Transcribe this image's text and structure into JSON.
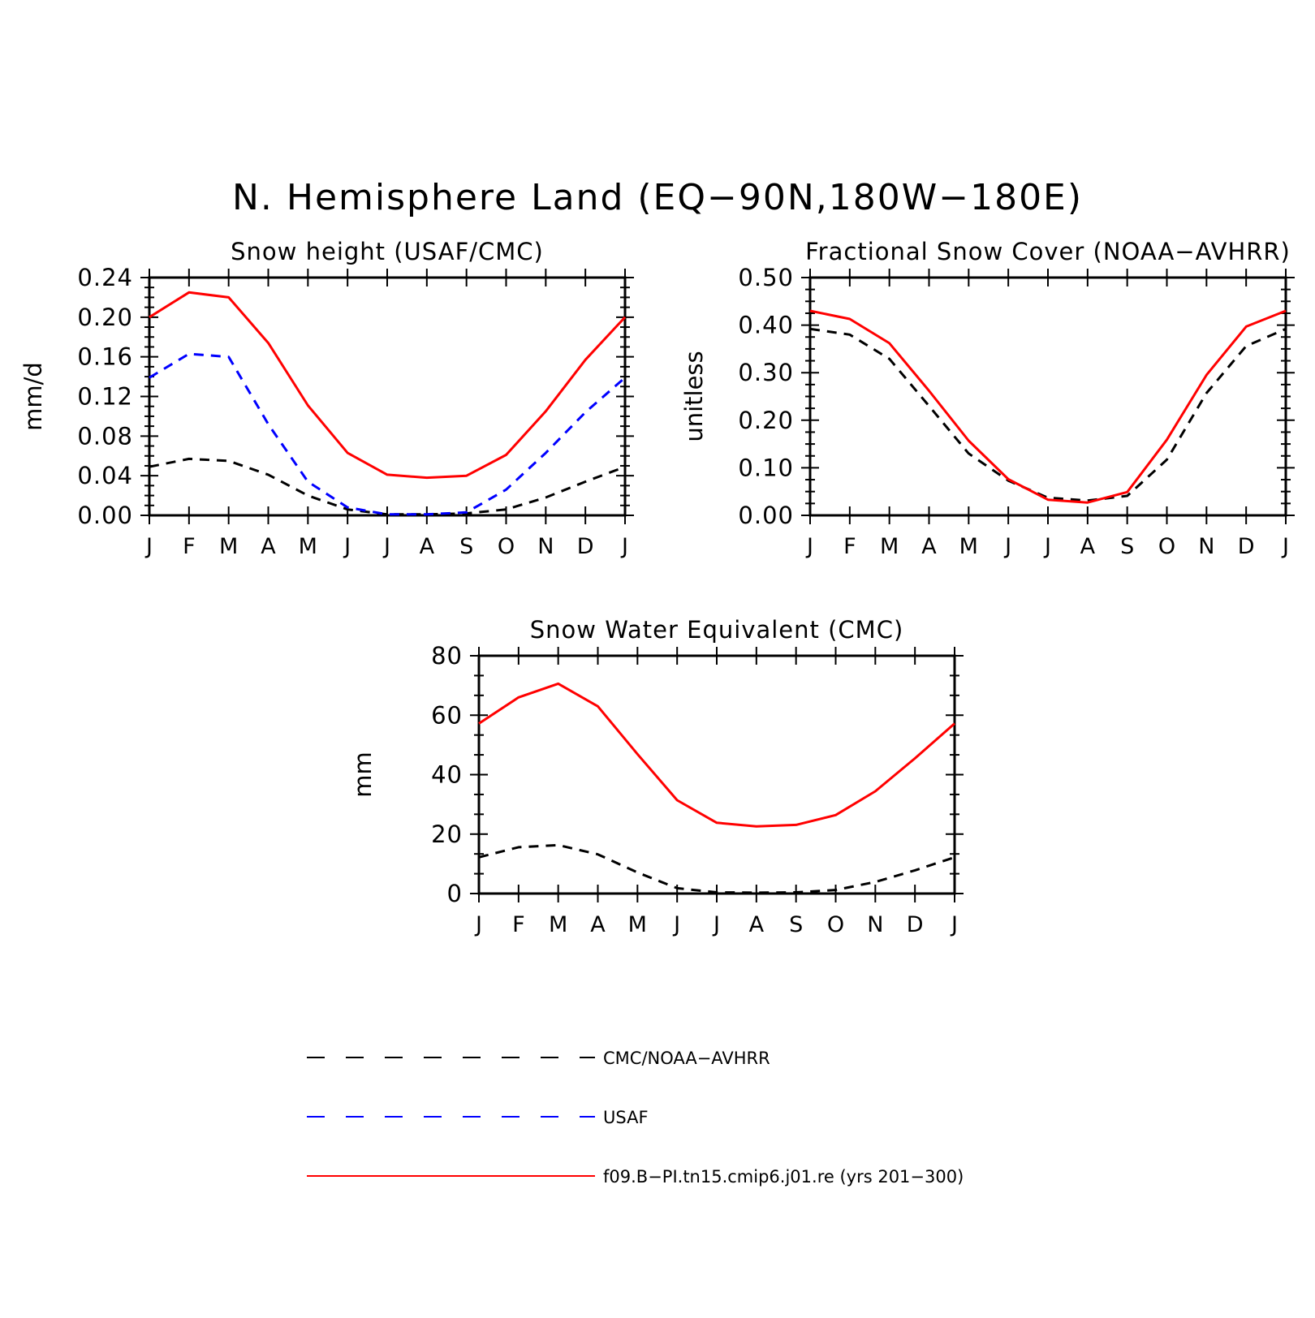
{
  "figure": {
    "title": "N. Hemisphere Land (EQ−90N,180W−180E)"
  },
  "colors": {
    "obs": "#000000",
    "usaf": "#0000ff",
    "model": "#ff0000",
    "axis": "#000000"
  },
  "legend": {
    "entries": [
      {
        "label": "CMC/NOAA−AVHRR",
        "color": "#000000",
        "dash": "dashed"
      },
      {
        "label": "USAF",
        "color": "#0000ff",
        "dash": "dashed"
      },
      {
        "label": "f09.B−PI.tn15.cmip6.j01.re (yrs 201−300)",
        "color": "#ff0000",
        "dash": "solid"
      }
    ]
  },
  "chart_data": [
    {
      "type": "line",
      "title": "Snow height (USAF/CMC)",
      "xlabel": "",
      "ylabel": "mm/d",
      "categories": [
        "J",
        "F",
        "M",
        "A",
        "M",
        "J",
        "J",
        "A",
        "S",
        "O",
        "N",
        "D",
        "J"
      ],
      "ylim": [
        0,
        0.24
      ],
      "yticks": [
        "0.00",
        "0.04",
        "0.08",
        "0.12",
        "0.16",
        "0.20",
        "0.24"
      ],
      "grid": false,
      "series": [
        {
          "name": "CMC/NOAA−AVHRR",
          "color": "#000000",
          "dash": "dashed",
          "values": [
            0.049,
            0.057,
            0.055,
            0.041,
            0.02,
            0.006,
            0.001,
            0.001,
            0.002,
            0.006,
            0.018,
            0.034,
            0.049
          ]
        },
        {
          "name": "USAF",
          "color": "#0000ff",
          "dash": "dashed",
          "values": [
            0.139,
            0.163,
            0.16,
            0.092,
            0.034,
            0.008,
            0.001,
            0.001,
            0.003,
            0.026,
            0.063,
            0.104,
            0.139
          ]
        },
        {
          "name": "f09.B−PI.tn15.cmip6.j01.re (yrs 201−300)",
          "color": "#ff0000",
          "dash": "solid",
          "values": [
            0.2,
            0.225,
            0.22,
            0.174,
            0.111,
            0.063,
            0.041,
            0.038,
            0.04,
            0.061,
            0.105,
            0.157,
            0.2
          ]
        }
      ]
    },
    {
      "type": "line",
      "title": "Fractional Snow Cover (NOAA−AVHRR)",
      "xlabel": "",
      "ylabel": "unitless",
      "categories": [
        "J",
        "F",
        "M",
        "A",
        "M",
        "J",
        "J",
        "A",
        "S",
        "O",
        "N",
        "D",
        "J"
      ],
      "ylim": [
        0,
        0.5
      ],
      "yticks": [
        "0.00",
        "0.10",
        "0.20",
        "0.30",
        "0.40",
        "0.50"
      ],
      "grid": false,
      "series": [
        {
          "name": "CMC/NOAA−AVHRR",
          "color": "#000000",
          "dash": "dashed",
          "values": [
            0.392,
            0.38,
            0.329,
            0.23,
            0.13,
            0.073,
            0.037,
            0.031,
            0.041,
            0.117,
            0.257,
            0.356,
            0.392
          ]
        },
        {
          "name": "f09.B−PI.tn15.cmip6.j01.re (yrs 201−300)",
          "color": "#ff0000",
          "dash": "solid",
          "values": [
            0.43,
            0.413,
            0.362,
            0.262,
            0.157,
            0.076,
            0.033,
            0.027,
            0.049,
            0.159,
            0.295,
            0.397,
            0.43
          ]
        }
      ]
    },
    {
      "type": "line",
      "title": "Snow Water Equivalent (CMC)",
      "xlabel": "",
      "ylabel": "mm",
      "categories": [
        "J",
        "F",
        "M",
        "A",
        "M",
        "J",
        "J",
        "A",
        "S",
        "O",
        "N",
        "D",
        "J"
      ],
      "ylim": [
        0,
        80
      ],
      "yticks": [
        "0",
        "20",
        "40",
        "60",
        "80"
      ],
      "grid": false,
      "series": [
        {
          "name": "CMC/NOAA−AVHRR",
          "color": "#000000",
          "dash": "dashed",
          "values": [
            12.2,
            15.6,
            16.3,
            13.2,
            7.1,
            1.8,
            0.4,
            0.3,
            0.4,
            1.2,
            3.9,
            7.8,
            12.2
          ]
        },
        {
          "name": "f09.B−PI.tn15.cmip6.j01.re (yrs 201−300)",
          "color": "#ff0000",
          "dash": "solid",
          "values": [
            57.2,
            66.0,
            70.6,
            63.0,
            46.9,
            31.4,
            23.8,
            22.6,
            23.1,
            26.4,
            34.4,
            45.5,
            57.2
          ]
        }
      ]
    }
  ]
}
